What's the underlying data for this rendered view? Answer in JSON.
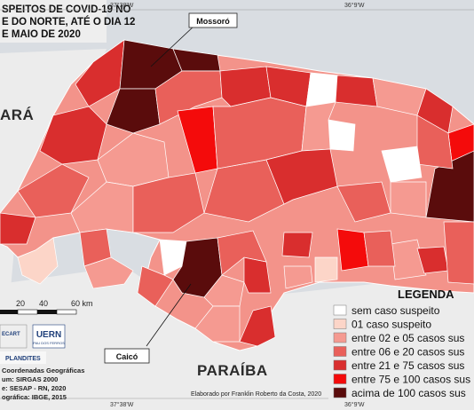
{
  "title_lines": [
    "SPEITOS DE COVID-19 NO",
    "E DO NORTE, ATÉ O DIA 12",
    "E MAIO DE 2020"
  ],
  "state_labels": {
    "ceara": "ARÁ",
    "paraiba": "PARAÍBA"
  },
  "coordinates": {
    "top_left": "37°38'W",
    "top_right": "36°9'W",
    "bottom_left": "37°38'W",
    "bottom_right": "36°9'W"
  },
  "callouts": {
    "mossoro": "Mossoró",
    "caico": "Caicó"
  },
  "scale_bar": {
    "labels": [
      "20",
      "40",
      "60 km"
    ]
  },
  "logos": {
    "uern": "UERN",
    "uern_sub": "PAU DOS FERROS",
    "plandites": "PLANDITES",
    "secart": "ECART"
  },
  "info_lines": [
    "Coordenadas Geográficas",
    "um: SIRGAS 2000",
    "e: SESAP - RN, 2020",
    "ográfica: IBGE, 2015"
  ],
  "credit": "Elaborado por Franklin Roberto da Costa, 2020",
  "legend": {
    "title": "LEGENDA",
    "items": [
      {
        "label": "sem caso suspeito",
        "color": "#ffffff"
      },
      {
        "label": "01 caso suspeito",
        "color": "#fcd5c8"
      },
      {
        "label": "entre 02 e 05 casos sus",
        "color": "#f59a91"
      },
      {
        "label": "entre 06 e 20 casos sus",
        "color": "#e9605a"
      },
      {
        "label": "entre 21 e 75 casos sus",
        "color": "#d92e2e"
      },
      {
        "label": "entre 75 e 100 casos sus",
        "color": "#f40b0b"
      },
      {
        "label": "acima de 100 casos sus",
        "color": "#5a0c0c"
      }
    ]
  }
}
